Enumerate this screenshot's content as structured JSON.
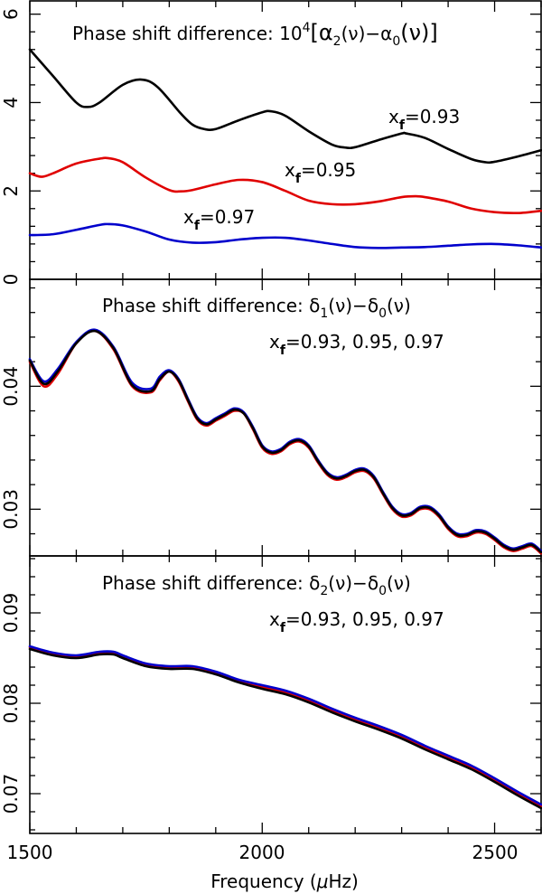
{
  "chart_data": [
    {
      "type": "line",
      "title": "Phase shift difference: 10⁴[α₂(ν)−α₀(ν)]",
      "title_parts": {
        "prefix": "Phase shift difference: 10",
        "exp": "4",
        "body": "[α",
        "s1": "2",
        "mid": "(ν)−α",
        "s2": "0",
        "end": "(ν)]"
      },
      "xlim": [
        1500,
        2600
      ],
      "ylim": [
        0,
        6.3
      ],
      "yticks": [
        0,
        2,
        4,
        6
      ],
      "ytick_labels": [
        "0",
        "2",
        "4",
        "6"
      ],
      "series": [
        {
          "label_main": "x",
          "label_sub": "f",
          "label_val": "=0.93",
          "color": "#000000",
          "x": [
            1500,
            1550,
            1600,
            1625,
            1650,
            1700,
            1740,
            1775,
            1825,
            1850,
            1875,
            1900,
            1950,
            2000,
            2020,
            2050,
            2100,
            2150,
            2180,
            2200,
            2250,
            2300,
            2310,
            2350,
            2400,
            2450,
            2480,
            2500,
            2550,
            2600
          ],
          "y": [
            5.2,
            4.6,
            4.0,
            3.9,
            4.0,
            4.4,
            4.52,
            4.35,
            3.75,
            3.5,
            3.4,
            3.4,
            3.6,
            3.78,
            3.8,
            3.7,
            3.35,
            3.05,
            2.98,
            2.99,
            3.15,
            3.3,
            3.3,
            3.2,
            2.95,
            2.72,
            2.65,
            2.66,
            2.78,
            2.92
          ]
        },
        {
          "label_main": "x",
          "label_sub": "f",
          "label_val": "=0.95",
          "color": "#e00000",
          "x": [
            1500,
            1525,
            1550,
            1600,
            1650,
            1670,
            1700,
            1750,
            1800,
            1825,
            1850,
            1900,
            1950,
            2000,
            2050,
            2100,
            2150,
            2200,
            2250,
            2300,
            2330,
            2350,
            2400,
            2450,
            2500,
            2550,
            2600
          ],
          "y": [
            2.4,
            2.32,
            2.4,
            2.62,
            2.73,
            2.74,
            2.65,
            2.3,
            2.02,
            1.99,
            2.02,
            2.15,
            2.25,
            2.2,
            2.0,
            1.78,
            1.7,
            1.7,
            1.76,
            1.86,
            1.88,
            1.86,
            1.76,
            1.6,
            1.52,
            1.5,
            1.55
          ]
        },
        {
          "label_main": "x",
          "label_sub": "f",
          "label_val": "=0.97",
          "color": "#0000cc",
          "x": [
            1500,
            1550,
            1600,
            1650,
            1670,
            1700,
            1750,
            1800,
            1850,
            1900,
            1950,
            2000,
            2050,
            2100,
            2150,
            2200,
            2250,
            2300,
            2350,
            2400,
            2450,
            2500,
            2550,
            2600
          ],
          "y": [
            1.0,
            1.02,
            1.12,
            1.23,
            1.25,
            1.22,
            1.08,
            0.9,
            0.83,
            0.84,
            0.9,
            0.94,
            0.94,
            0.88,
            0.8,
            0.73,
            0.71,
            0.72,
            0.73,
            0.76,
            0.79,
            0.8,
            0.77,
            0.72
          ]
        }
      ]
    },
    {
      "type": "line",
      "title": "Phase shift difference: δ₁(ν)−δ₀(ν)",
      "title_parts": {
        "prefix": "Phase shift difference: δ",
        "s1": "1",
        "mid": "(ν)−δ",
        "s2": "0",
        "end": "(ν)"
      },
      "legend_note": {
        "main": "x",
        "sub": "f",
        "rest": "=0.93, 0.95, 0.97"
      },
      "xlim": [
        1500,
        2600
      ],
      "ylim": [
        0.0262,
        0.0487
      ],
      "yticks": [
        0.03,
        0.04
      ],
      "ytick_labels": [
        "0.03",
        "0.04"
      ],
      "series": [
        {
          "color": "#e00000",
          "x": [
            1500,
            1530,
            1560,
            1600,
            1640,
            1680,
            1720,
            1760,
            1780,
            1800,
            1820,
            1840,
            1860,
            1880,
            1900,
            1920,
            1940,
            1960,
            1980,
            2000,
            2020,
            2040,
            2060,
            2080,
            2100,
            2120,
            2140,
            2160,
            2180,
            2200,
            2220,
            2240,
            2260,
            2280,
            2300,
            2320,
            2340,
            2360,
            2380,
            2400,
            2420,
            2440,
            2460,
            2480,
            2500,
            2520,
            2540,
            2560,
            2580,
            2600
          ],
          "y": [
            0.042,
            0.04,
            0.041,
            0.0435,
            0.0445,
            0.043,
            0.04,
            0.0395,
            0.0405,
            0.0412,
            0.0404,
            0.0388,
            0.0373,
            0.0368,
            0.0372,
            0.0376,
            0.038,
            0.0378,
            0.0365,
            0.035,
            0.0345,
            0.0347,
            0.0353,
            0.0355,
            0.035,
            0.0338,
            0.0328,
            0.0324,
            0.0326,
            0.033,
            0.0331,
            0.0325,
            0.0312,
            0.03,
            0.0294,
            0.0295,
            0.03,
            0.03,
            0.0294,
            0.0284,
            0.0278,
            0.0278,
            0.0281,
            0.028,
            0.0275,
            0.0269,
            0.0266,
            0.0268,
            0.027,
            0.0264
          ]
        },
        {
          "color": "#0000cc",
          "x": [
            1500,
            1530,
            1560,
            1600,
            1640,
            1680,
            1720,
            1760,
            1780,
            1800,
            1820,
            1840,
            1860,
            1880,
            1900,
            1920,
            1940,
            1960,
            1980,
            2000,
            2020,
            2040,
            2060,
            2080,
            2100,
            2120,
            2140,
            2160,
            2180,
            2200,
            2220,
            2240,
            2260,
            2280,
            2300,
            2320,
            2340,
            2360,
            2380,
            2400,
            2420,
            2440,
            2460,
            2480,
            2500,
            2520,
            2540,
            2560,
            2580,
            2600
          ],
          "y": [
            0.0422,
            0.0404,
            0.0414,
            0.0436,
            0.0446,
            0.0432,
            0.0403,
            0.0398,
            0.0408,
            0.0413,
            0.0406,
            0.039,
            0.0375,
            0.037,
            0.0374,
            0.0378,
            0.0382,
            0.0379,
            0.0367,
            0.0352,
            0.0347,
            0.0349,
            0.0355,
            0.0357,
            0.0352,
            0.034,
            0.033,
            0.0326,
            0.0328,
            0.0332,
            0.0333,
            0.0327,
            0.0314,
            0.0302,
            0.0296,
            0.0297,
            0.0302,
            0.0302,
            0.0296,
            0.0286,
            0.028,
            0.028,
            0.0283,
            0.0282,
            0.0277,
            0.0271,
            0.0268,
            0.027,
            0.0272,
            0.0266
          ]
        },
        {
          "color": "#000000",
          "x": [
            1500,
            1530,
            1560,
            1600,
            1640,
            1680,
            1720,
            1760,
            1780,
            1800,
            1820,
            1840,
            1860,
            1880,
            1900,
            1920,
            1940,
            1960,
            1980,
            2000,
            2020,
            2040,
            2060,
            2080,
            2100,
            2120,
            2140,
            2160,
            2180,
            2200,
            2220,
            2240,
            2260,
            2280,
            2300,
            2320,
            2340,
            2360,
            2380,
            2400,
            2420,
            2440,
            2460,
            2480,
            2500,
            2520,
            2540,
            2560,
            2580,
            2600
          ],
          "y": [
            0.0421,
            0.0402,
            0.0412,
            0.0435,
            0.0445,
            0.0431,
            0.0401,
            0.0396,
            0.0406,
            0.0412,
            0.0405,
            0.0389,
            0.0374,
            0.0369,
            0.0373,
            0.0377,
            0.0381,
            0.0378,
            0.0366,
            0.0351,
            0.0346,
            0.0348,
            0.0354,
            0.0356,
            0.0351,
            0.0339,
            0.0329,
            0.0325,
            0.0327,
            0.0331,
            0.0332,
            0.0326,
            0.0313,
            0.0301,
            0.0295,
            0.0296,
            0.0301,
            0.0301,
            0.0295,
            0.0285,
            0.0279,
            0.0279,
            0.0282,
            0.0281,
            0.0276,
            0.027,
            0.0267,
            0.0269,
            0.0271,
            0.0265
          ]
        }
      ]
    },
    {
      "type": "line",
      "title": "Phase shift difference: δ₂(ν)−δ₀(ν)",
      "title_parts": {
        "prefix": "Phase shift difference: δ",
        "s1": "2",
        "mid": "(ν)−δ",
        "s2": "0",
        "end": "(ν)"
      },
      "legend_note": {
        "main": "x",
        "sub": "f",
        "rest": "=0.93, 0.95, 0.97"
      },
      "xlim": [
        1500,
        2600
      ],
      "ylim": [
        0.0656,
        0.0963
      ],
      "yticks": [
        0.07,
        0.08,
        0.09
      ],
      "ytick_labels": [
        "0.07",
        "0.08",
        "0.09"
      ],
      "series": [
        {
          "color": "#e00000",
          "x": [
            1500,
            1550,
            1600,
            1650,
            1680,
            1700,
            1750,
            1800,
            1850,
            1900,
            1950,
            2000,
            2050,
            2100,
            2150,
            2200,
            2250,
            2300,
            2350,
            2400,
            2450,
            2500,
            2550,
            2600
          ],
          "y": [
            0.0862,
            0.0855,
            0.0852,
            0.0856,
            0.0856,
            0.0852,
            0.0843,
            0.084,
            0.084,
            0.0834,
            0.0825,
            0.0818,
            0.0812,
            0.0803,
            0.0792,
            0.0782,
            0.0773,
            0.0763,
            0.0751,
            0.074,
            0.0729,
            0.0715,
            0.07,
            0.0686
          ]
        },
        {
          "color": "#0000cc",
          "x": [
            1500,
            1550,
            1600,
            1650,
            1680,
            1700,
            1750,
            1800,
            1850,
            1900,
            1950,
            2000,
            2050,
            2100,
            2150,
            2200,
            2250,
            2300,
            2350,
            2400,
            2450,
            2500,
            2550,
            2600
          ],
          "y": [
            0.0863,
            0.0856,
            0.0853,
            0.0857,
            0.0857,
            0.0853,
            0.0844,
            0.0841,
            0.0841,
            0.0835,
            0.0826,
            0.082,
            0.0814,
            0.0805,
            0.0794,
            0.0784,
            0.0775,
            0.0765,
            0.0753,
            0.0742,
            0.0731,
            0.0717,
            0.0702,
            0.0688
          ]
        },
        {
          "color": "#000000",
          "x": [
            1500,
            1550,
            1600,
            1650,
            1680,
            1700,
            1750,
            1800,
            1850,
            1900,
            1950,
            2000,
            2050,
            2100,
            2150,
            2200,
            2250,
            2300,
            2350,
            2400,
            2450,
            2500,
            2550,
            2600
          ],
          "y": [
            0.086,
            0.0853,
            0.085,
            0.0854,
            0.0854,
            0.085,
            0.0841,
            0.0838,
            0.0838,
            0.0832,
            0.0823,
            0.0816,
            0.081,
            0.0801,
            0.079,
            0.078,
            0.0771,
            0.0761,
            0.0749,
            0.0738,
            0.0727,
            0.0713,
            0.0698,
            0.0684
          ]
        }
      ]
    }
  ],
  "shared_x_axis": {
    "xlabel": "Frequency (μHz)",
    "xlabel_prefix": "Frequency (",
    "xlabel_mu": "μ",
    "xlabel_suffix": "Hz)",
    "xticks": [
      1500,
      2000,
      2500
    ],
    "xtick_labels": [
      "1500",
      "2000",
      "2500"
    ]
  }
}
